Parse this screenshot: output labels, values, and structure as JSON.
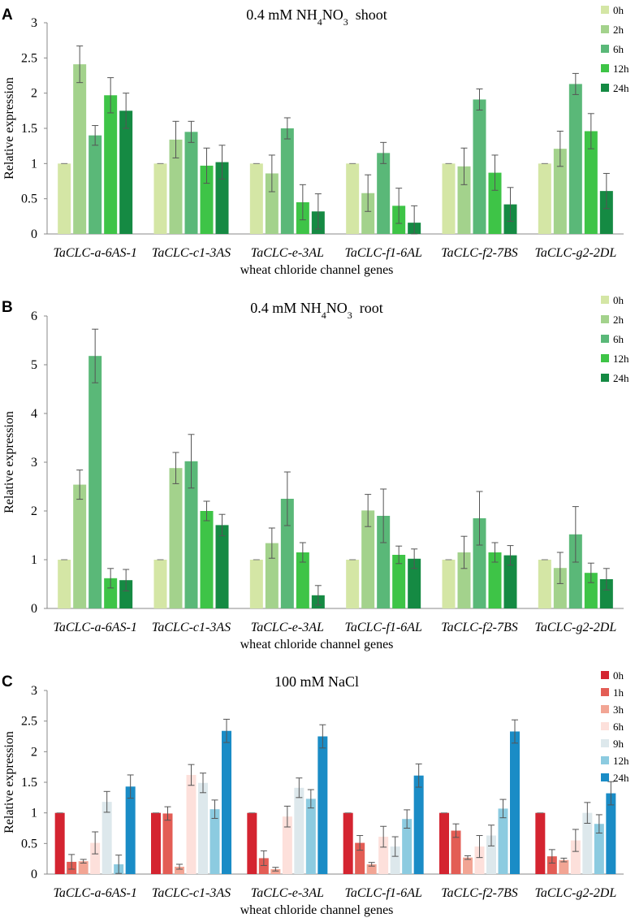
{
  "chart_data": [
    {
      "type": "bar",
      "panel": "A",
      "title_main": "0.4 mM NH",
      "title_sub1": "4",
      "title_mid": "NO",
      "title_sub2": "3",
      "title_end": "shoot",
      "xlabel": "wheat chloride channel genes",
      "ylabel": "Relative expression",
      "ylim": [
        0,
        3
      ],
      "yticks": [
        "0",
        "0.5",
        "1",
        "1.5",
        "2",
        "2.5",
        "3"
      ],
      "categories": [
        "TaCLC-a-6AS-1",
        "TaCLC-c1-3AS",
        "TaCLC-e-3AL",
        "TaCLC-f1-6AL",
        "TaCLC-f2-7BS",
        "TaCLC-g2-2DL"
      ],
      "series": [
        {
          "name": "0h",
          "color": "#d4e6a5",
          "values": [
            1,
            1,
            1,
            1,
            1,
            1
          ],
          "errors": [
            0,
            0,
            0,
            0,
            0,
            0
          ]
        },
        {
          "name": "2h",
          "color": "#a3d28c",
          "values": [
            2.41,
            1.34,
            0.86,
            0.58,
            0.96,
            1.21
          ],
          "errors": [
            0.26,
            0.26,
            0.26,
            0.26,
            0.26,
            0.25
          ]
        },
        {
          "name": "6h",
          "color": "#5ab878",
          "values": [
            1.4,
            1.45,
            1.5,
            1.15,
            1.91,
            2.13
          ],
          "errors": [
            0.14,
            0.15,
            0.15,
            0.15,
            0.15,
            0.15
          ]
        },
        {
          "name": "12h",
          "color": "#3ec447",
          "values": [
            1.97,
            0.97,
            0.45,
            0.4,
            0.87,
            1.46
          ],
          "errors": [
            0.25,
            0.25,
            0.25,
            0.25,
            0.25,
            0.25
          ]
        },
        {
          "name": "24h",
          "color": "#158a43",
          "values": [
            1.75,
            1.02,
            0.32,
            0.16,
            0.42,
            0.61
          ],
          "errors": [
            0.25,
            0.24,
            0.25,
            0.24,
            0.24,
            0.25
          ]
        }
      ]
    },
    {
      "type": "bar",
      "panel": "B",
      "title_main": "0.4 mM NH",
      "title_sub1": "4",
      "title_mid": "NO",
      "title_sub2": "3",
      "title_end": "root",
      "xlabel": "wheat chloride channel genes",
      "ylabel": "Relative expression",
      "ylim": [
        0,
        6
      ],
      "yticks": [
        "0",
        "1",
        "2",
        "3",
        "4",
        "5",
        "6"
      ],
      "categories": [
        "TaCLC-a-6AS-1",
        "TaCLC-c1-3AS",
        "TaCLC-e-3AL",
        "TaCLC-f1-6AL",
        "TaCLC-f2-7BS",
        "TaCLC-g2-2DL"
      ],
      "series": [
        {
          "name": "0h",
          "color": "#d4e6a5",
          "values": [
            1,
            1,
            1,
            1,
            1,
            1
          ],
          "errors": [
            0,
            0,
            0,
            0,
            0,
            0
          ]
        },
        {
          "name": "2h",
          "color": "#a3d28c",
          "values": [
            2.54,
            2.88,
            1.34,
            2.01,
            1.15,
            0.83
          ],
          "errors": [
            0.3,
            0.32,
            0.31,
            0.33,
            0.33,
            0.32
          ]
        },
        {
          "name": "6h",
          "color": "#5ab878",
          "values": [
            5.18,
            3.02,
            2.25,
            1.9,
            1.85,
            1.52
          ],
          "errors": [
            0.55,
            0.55,
            0.55,
            0.55,
            0.55,
            0.57
          ]
        },
        {
          "name": "12h",
          "color": "#3ec447",
          "values": [
            0.62,
            2.0,
            1.15,
            1.1,
            1.15,
            0.73
          ],
          "errors": [
            0.2,
            0.2,
            0.2,
            0.18,
            0.2,
            0.2
          ]
        },
        {
          "name": "24h",
          "color": "#158a43",
          "values": [
            0.58,
            1.71,
            0.27,
            1.02,
            1.09,
            0.6
          ],
          "errors": [
            0.22,
            0.22,
            0.2,
            0.2,
            0.2,
            0.22
          ]
        }
      ]
    },
    {
      "type": "bar",
      "panel": "C",
      "title_main": "100 mM NaCl",
      "title_sub1": "",
      "title_mid": "",
      "title_sub2": "",
      "title_end": "",
      "xlabel": "wheat chloride channel genes",
      "ylabel": "Relative expression",
      "ylim": [
        0,
        3
      ],
      "yticks": [
        "0",
        "0.5",
        "1",
        "1.5",
        "2",
        "2.5",
        "3"
      ],
      "categories": [
        "TaCLC-a-6AS-1",
        "TaCLC-c1-3AS",
        "TaCLC-e-3AL",
        "TaCLC-f1-6AL",
        "TaCLC-f2-7BS",
        "TaCLC-g2-2DL"
      ],
      "series": [
        {
          "name": "0h",
          "color": "#d42430",
          "values": [
            1,
            1,
            1,
            1,
            1,
            1
          ],
          "errors": [
            0,
            0,
            0,
            0,
            0,
            0
          ]
        },
        {
          "name": "1h",
          "color": "#e35d55",
          "values": [
            0.2,
            0.99,
            0.26,
            0.51,
            0.71,
            0.29
          ],
          "errors": [
            0.12,
            0.11,
            0.12,
            0.12,
            0.11,
            0.11
          ]
        },
        {
          "name": "3h",
          "color": "#f2a594",
          "values": [
            0.21,
            0.12,
            0.08,
            0.16,
            0.27,
            0.23
          ],
          "errors": [
            0.03,
            0.04,
            0.03,
            0.03,
            0.03,
            0.03
          ]
        },
        {
          "name": "6h",
          "color": "#fde0db",
          "values": [
            0.51,
            1.62,
            0.94,
            0.61,
            0.45,
            0.55
          ],
          "errors": [
            0.18,
            0.17,
            0.17,
            0.17,
            0.18,
            0.18
          ]
        },
        {
          "name": "9h",
          "color": "#dde8ec",
          "values": [
            1.18,
            1.49,
            1.41,
            0.45,
            0.63,
            1.0
          ],
          "errors": [
            0.17,
            0.16,
            0.16,
            0.16,
            0.17,
            0.17
          ]
        },
        {
          "name": "12h",
          "color": "#8ccbe0",
          "values": [
            0.16,
            1.06,
            1.23,
            0.9,
            1.07,
            0.82
          ],
          "errors": [
            0.15,
            0.15,
            0.15,
            0.15,
            0.15,
            0.15
          ]
        },
        {
          "name": "24h",
          "color": "#1a8cc6",
          "values": [
            1.43,
            2.34,
            2.25,
            1.61,
            2.33,
            1.32
          ],
          "errors": [
            0.19,
            0.19,
            0.19,
            0.19,
            0.19,
            0.19
          ]
        }
      ]
    }
  ]
}
